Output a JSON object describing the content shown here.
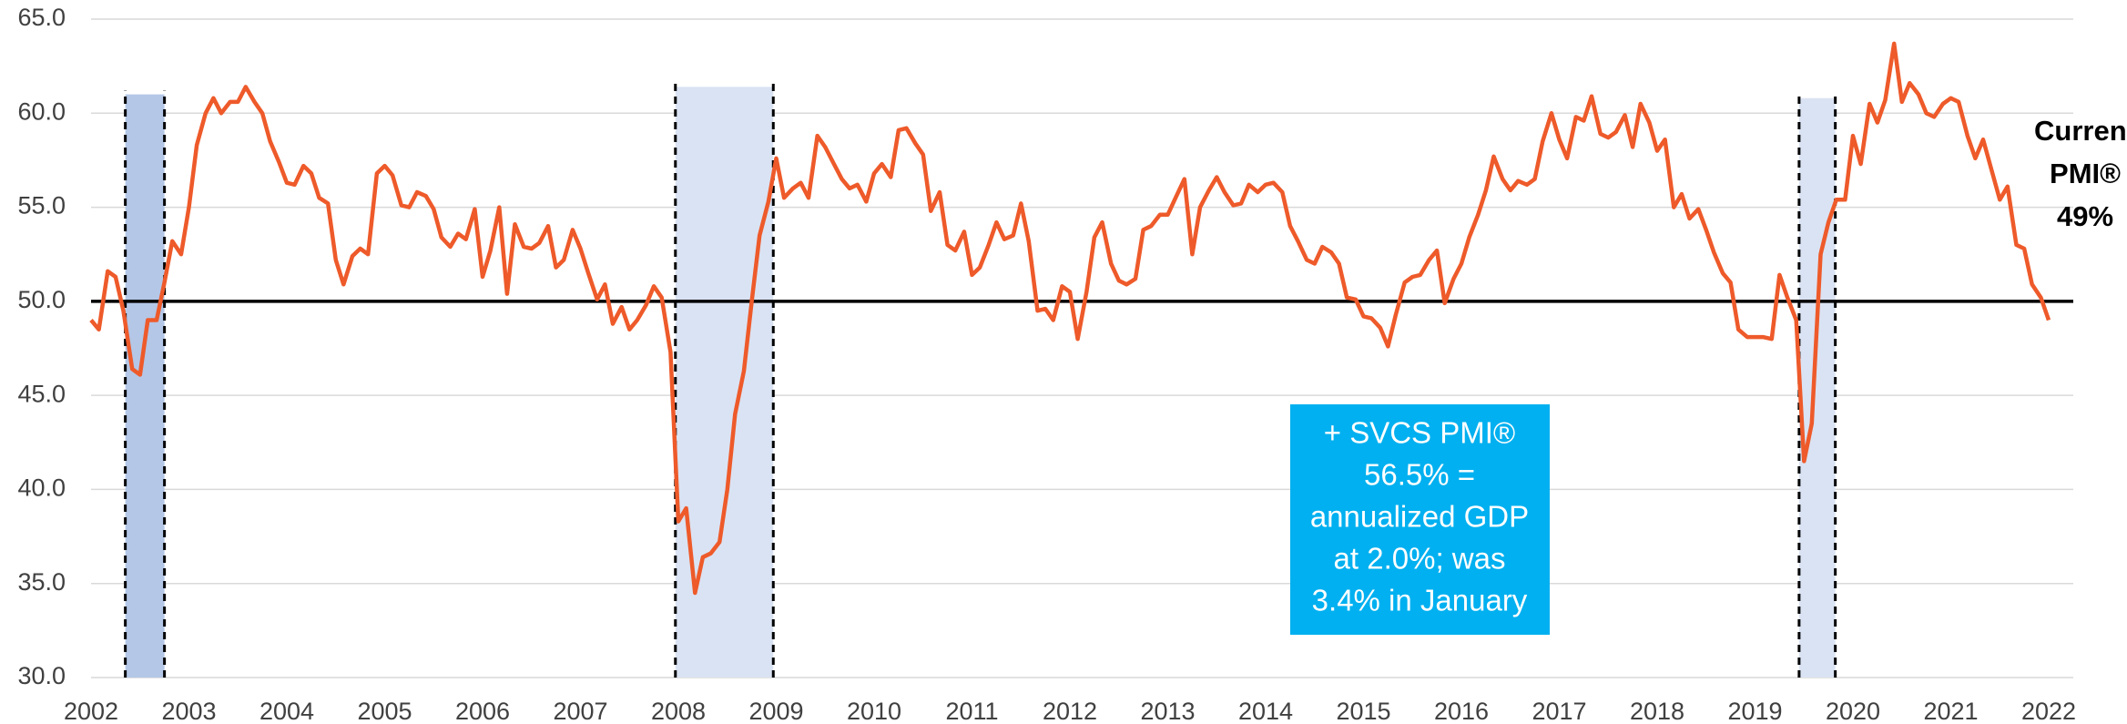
{
  "chart_data": {
    "type": "line",
    "x": [
      2002.0,
      2002.08,
      2002.17,
      2002.25,
      2002.33,
      2002.42,
      2002.5,
      2002.58,
      2002.67,
      2002.75,
      2002.83,
      2002.92,
      2003.0,
      2003.08,
      2003.17,
      2003.25,
      2003.33,
      2003.42,
      2003.5,
      2003.58,
      2003.67,
      2003.75,
      2003.83,
      2003.92,
      2004.0,
      2004.08,
      2004.17,
      2004.25,
      2004.33,
      2004.42,
      2004.5,
      2004.58,
      2004.67,
      2004.75,
      2004.83,
      2004.92,
      2005.0,
      2005.08,
      2005.17,
      2005.25,
      2005.33,
      2005.42,
      2005.5,
      2005.58,
      2005.67,
      2005.75,
      2005.83,
      2005.92,
      2006.0,
      2006.08,
      2006.17,
      2006.25,
      2006.33,
      2006.42,
      2006.5,
      2006.58,
      2006.67,
      2006.75,
      2006.83,
      2006.92,
      2007.0,
      2007.08,
      2007.17,
      2007.25,
      2007.33,
      2007.42,
      2007.5,
      2007.58,
      2007.67,
      2007.75,
      2007.83,
      2007.92,
      2008.0,
      2008.08,
      2008.17,
      2008.25,
      2008.33,
      2008.42,
      2008.5,
      2008.58,
      2008.67,
      2008.75,
      2008.83,
      2008.92,
      2009.0,
      2009.08,
      2009.17,
      2009.25,
      2009.33,
      2009.42,
      2009.5,
      2009.58,
      2009.67,
      2009.75,
      2009.83,
      2009.92,
      2010.0,
      2010.08,
      2010.17,
      2010.25,
      2010.33,
      2010.42,
      2010.5,
      2010.58,
      2010.67,
      2010.75,
      2010.83,
      2010.92,
      2011.0,
      2011.08,
      2011.17,
      2011.25,
      2011.33,
      2011.42,
      2011.5,
      2011.58,
      2011.67,
      2011.75,
      2011.83,
      2011.92,
      2012.0,
      2012.08,
      2012.17,
      2012.25,
      2012.33,
      2012.42,
      2012.5,
      2012.58,
      2012.67,
      2012.75,
      2012.83,
      2012.92,
      2013.0,
      2013.08,
      2013.17,
      2013.25,
      2013.33,
      2013.42,
      2013.5,
      2013.58,
      2013.67,
      2013.75,
      2013.83,
      2013.92,
      2014.0,
      2014.08,
      2014.17,
      2014.25,
      2014.33,
      2014.42,
      2014.5,
      2014.58,
      2014.67,
      2014.75,
      2014.83,
      2014.92,
      2015.0,
      2015.08,
      2015.17,
      2015.25,
      2015.33,
      2015.42,
      2015.5,
      2015.58,
      2015.67,
      2015.75,
      2015.83,
      2015.92,
      2016.0,
      2016.08,
      2016.17,
      2016.25,
      2016.33,
      2016.42,
      2016.5,
      2016.58,
      2016.67,
      2016.75,
      2016.83,
      2016.92,
      2017.0,
      2017.08,
      2017.17,
      2017.25,
      2017.33,
      2017.42,
      2017.5,
      2017.58,
      2017.67,
      2017.75,
      2017.83,
      2017.92,
      2018.0,
      2018.08,
      2018.17,
      2018.25,
      2018.33,
      2018.42,
      2018.5,
      2018.58,
      2018.67,
      2018.75,
      2018.83,
      2018.92,
      2019.0,
      2019.08,
      2019.17,
      2019.25,
      2019.33,
      2019.42,
      2019.5,
      2019.58,
      2019.67,
      2019.75,
      2019.83,
      2019.92,
      2020.0,
      2020.08,
      2020.17,
      2020.25,
      2020.33,
      2020.42,
      2020.5,
      2020.58,
      2020.67,
      2020.75,
      2020.83,
      2020.92,
      2021.0,
      2021.08,
      2021.17,
      2021.25,
      2021.33,
      2021.42,
      2021.5,
      2021.58,
      2021.67,
      2021.75,
      2021.83,
      2021.92,
      2022.0
    ],
    "values": [
      49.0,
      48.5,
      51.6,
      51.3,
      49.5,
      46.4,
      46.1,
      49.0,
      49.0,
      51.0,
      53.2,
      52.5,
      55.0,
      58.3,
      60.0,
      60.8,
      60.0,
      60.6,
      60.6,
      61.4,
      60.6,
      60.0,
      58.5,
      57.4,
      56.3,
      56.2,
      57.2,
      56.8,
      55.5,
      55.2,
      52.2,
      50.9,
      52.4,
      52.8,
      52.5,
      56.8,
      57.2,
      56.7,
      55.1,
      55.0,
      55.8,
      55.6,
      54.9,
      53.4,
      52.9,
      53.6,
      53.3,
      54.9,
      51.3,
      52.7,
      55.0,
      50.4,
      54.1,
      52.9,
      52.8,
      53.1,
      54.0,
      51.8,
      52.2,
      53.8,
      52.8,
      51.5,
      50.1,
      50.9,
      48.8,
      49.7,
      48.5,
      49.0,
      49.8,
      50.8,
      50.2,
      47.3,
      38.3,
      39.0,
      34.5,
      36.4,
      36.6,
      37.2,
      40.0,
      44.0,
      46.3,
      50.0,
      53.5,
      55.3,
      57.6,
      55.5,
      56.0,
      56.3,
      55.5,
      58.8,
      58.2,
      57.4,
      56.5,
      56.0,
      56.2,
      55.3,
      56.8,
      57.3,
      56.6,
      59.1,
      59.2,
      58.4,
      57.8,
      54.8,
      55.8,
      53.0,
      52.7,
      53.7,
      51.4,
      51.8,
      53.0,
      54.2,
      53.3,
      53.5,
      55.2,
      53.2,
      49.5,
      49.6,
      49.0,
      50.8,
      50.5,
      48.0,
      50.5,
      53.4,
      54.2,
      52.0,
      51.1,
      50.9,
      51.2,
      53.8,
      54.0,
      54.6,
      54.6,
      55.5,
      56.5,
      52.5,
      55.0,
      55.9,
      56.6,
      55.8,
      55.1,
      55.2,
      56.2,
      55.8,
      56.2,
      56.3,
      55.8,
      54.0,
      53.2,
      52.2,
      52.0,
      52.9,
      52.6,
      52.0,
      50.2,
      50.1,
      49.2,
      49.1,
      48.6,
      47.6,
      49.3,
      51.0,
      51.3,
      51.4,
      52.2,
      52.7,
      49.9,
      51.2,
      52.0,
      53.4,
      54.6,
      55.9,
      57.7,
      56.5,
      55.9,
      56.4,
      56.2,
      56.5,
      58.5,
      60.0,
      58.6,
      57.6,
      59.8,
      59.6,
      60.9,
      58.9,
      58.7,
      59.0,
      59.9,
      58.2,
      60.5,
      59.5,
      58.0,
      58.6,
      55.0,
      55.7,
      54.4,
      54.9,
      53.8,
      52.6,
      51.5,
      51.0,
      48.5,
      48.1,
      48.1,
      48.1,
      48.0,
      51.4,
      50.2,
      49.0,
      41.5,
      43.5,
      52.5,
      54.2,
      55.4,
      55.4,
      58.8,
      57.3,
      60.5,
      59.5,
      60.7,
      63.7,
      60.6,
      61.6,
      61.0,
      60.0,
      59.8,
      60.5,
      60.8,
      60.6,
      58.8,
      57.6,
      58.6,
      56.9,
      55.4,
      56.1,
      53.0,
      52.8,
      50.9,
      50.2,
      49.0
    ],
    "color": "#ee5a2a",
    "xlim": [
      2002,
      2022
    ],
    "xticks": [
      2002,
      2003,
      2004,
      2005,
      2006,
      2007,
      2008,
      2009,
      2010,
      2011,
      2012,
      2013,
      2014,
      2015,
      2016,
      2017,
      2018,
      2019,
      2020,
      2021,
      2022
    ],
    "ylim": [
      30,
      65
    ],
    "yticks": [
      {
        "value": 30,
        "label": "30.0"
      },
      {
        "value": 35,
        "label": "35.0"
      },
      {
        "value": 40,
        "label": "40.0"
      },
      {
        "value": 45,
        "label": "45.0"
      },
      {
        "value": 50,
        "label": "50.0"
      },
      {
        "value": 55,
        "label": "55.0"
      },
      {
        "value": 60,
        "label": "60.0"
      },
      {
        "value": 65,
        "label": "65.0"
      }
    ],
    "grid": true,
    "reference_line": 50,
    "bands": [
      {
        "x": [
          2002.35,
          2002.75
        ],
        "top": 61,
        "color": "#b4c7e7"
      },
      {
        "x": [
          2007.97,
          2008.97
        ],
        "top": 61.4,
        "color": "#dae3f3"
      },
      {
        "x": [
          2019.45,
          2019.82
        ],
        "top": 60.8,
        "color": "#dae3f3"
      }
    ],
    "annotations": {
      "current": [
        "Current",
        "PMI®",
        "49%"
      ],
      "box": [
        "+ SVCS PMI®",
        "56.5% =",
        "annualized GDP",
        "at 2.0%; was",
        "3.4% in January"
      ],
      "box_color": "#00b0f0"
    }
  }
}
